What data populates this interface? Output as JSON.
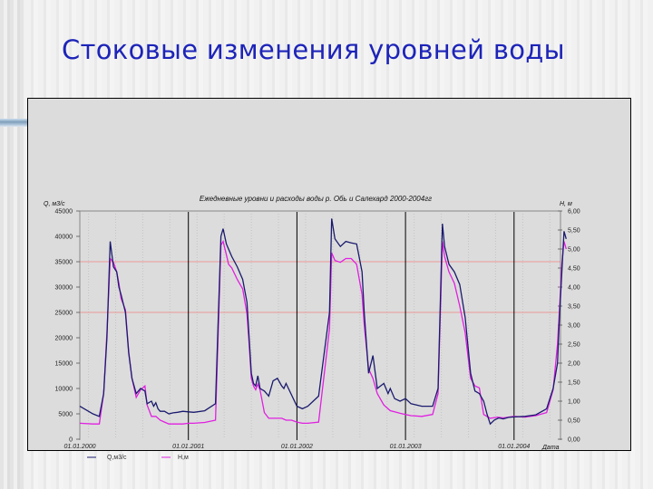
{
  "slide": {
    "title": "Стоковые изменения уровней воды"
  },
  "colors": {
    "title": "#1d24b8",
    "q_series": "#1a1a6e",
    "h_series": "#e020e0",
    "ref_lines": "#f08080",
    "year_lines": "#000000",
    "plot_bg": "#dcdcdc"
  },
  "chart_data": {
    "type": "line",
    "title": "Ежедневные уровни и расходы воды р. Обь и Салехард 2000-2004гг",
    "xlabel": "Дата",
    "ylabel_left": "Q, м3/с",
    "ylabel_right": "H, м",
    "ylim_left": [
      0,
      45000
    ],
    "ylim_right": [
      0.0,
      6.0
    ],
    "x_tick_labels": [
      "01.01.2000",
      "01.01.2001",
      "01.01.2002",
      "01.01.2003",
      "01.01.2004"
    ],
    "y_left_ticks": [
      "0",
      "5000",
      "10000",
      "15000",
      "20000",
      "25000",
      "30000",
      "35000",
      "40000",
      "45000"
    ],
    "y_right_ticks": [
      "0,00",
      "0,50",
      "1,00",
      "1,50",
      "2,00",
      "2,50",
      "3,00",
      "3,50",
      "4,00",
      "4,50",
      "5,00",
      "5,50",
      "6,00"
    ],
    "reference_lines_left": [
      25000,
      35000
    ],
    "legend": [
      "Q,м3/с",
      "H,м"
    ],
    "x_unit": "years since 01.01.2000",
    "series": [
      {
        "name": "Q,м3/с",
        "axis": "left",
        "x": [
          0.0,
          0.12,
          0.18,
          0.22,
          0.25,
          0.28,
          0.31,
          0.34,
          0.36,
          0.38,
          0.42,
          0.45,
          0.48,
          0.52,
          0.56,
          0.6,
          0.62,
          0.66,
          0.68,
          0.7,
          0.72,
          0.74,
          0.78,
          0.82,
          0.86,
          0.9,
          0.95,
          1.0,
          1.05,
          1.15,
          1.25,
          1.3,
          1.32,
          1.35,
          1.37,
          1.4,
          1.45,
          1.5,
          1.54,
          1.56,
          1.58,
          1.6,
          1.62,
          1.64,
          1.66,
          1.7,
          1.74,
          1.78,
          1.82,
          1.86,
          1.88,
          1.9,
          2.0,
          2.05,
          2.1,
          2.2,
          2.3,
          2.32,
          2.35,
          2.4,
          2.45,
          2.5,
          2.55,
          2.6,
          2.62,
          2.66,
          2.7,
          2.74,
          2.8,
          2.84,
          2.86,
          2.9,
          2.95,
          3.0,
          3.05,
          3.15,
          3.25,
          3.3,
          3.34,
          3.36,
          3.4,
          3.45,
          3.5,
          3.55,
          3.6,
          3.64,
          3.68,
          3.72,
          3.75,
          3.78,
          3.82,
          3.86,
          3.9,
          3.95,
          4.0,
          4.1,
          4.2,
          4.3,
          4.36,
          4.4,
          4.42,
          4.44,
          4.46,
          4.48
        ],
        "y": [
          6500,
          5000,
          4500,
          9000,
          20000,
          39000,
          34000,
          33000,
          30000,
          28500,
          25000,
          17000,
          12000,
          9000,
          10000,
          9500,
          7000,
          7500,
          6500,
          7200,
          6000,
          5500,
          5500,
          5000,
          5200,
          5300,
          5500,
          5400,
          5300,
          5600,
          7000,
          40000,
          41500,
          38500,
          37500,
          36000,
          34000,
          31500,
          27000,
          20000,
          13000,
          11000,
          10500,
          12500,
          10000,
          9500,
          8500,
          11500,
          12000,
          10500,
          10000,
          11000,
          6500,
          6000,
          6500,
          8500,
          25000,
          43500,
          39500,
          38000,
          39000,
          38700,
          38500,
          33000,
          25000,
          13000,
          16500,
          10000,
          11000,
          9000,
          10000,
          8000,
          7500,
          8000,
          7000,
          6500,
          6500,
          10000,
          42500,
          38000,
          34500,
          33000,
          30500,
          24000,
          13000,
          9500,
          9000,
          7500,
          5000,
          3000,
          3800,
          4200,
          4000,
          4300,
          4400,
          4500,
          4800,
          6000,
          10000,
          15000,
          25000,
          33000,
          41000,
          39500
        ]
      },
      {
        "name": "H,м",
        "axis": "right",
        "x": [
          0.0,
          0.12,
          0.18,
          0.22,
          0.25,
          0.28,
          0.31,
          0.34,
          0.36,
          0.38,
          0.42,
          0.45,
          0.48,
          0.52,
          0.56,
          0.6,
          0.62,
          0.66,
          0.7,
          0.74,
          0.78,
          0.82,
          0.86,
          0.9,
          0.95,
          1.0,
          1.05,
          1.15,
          1.25,
          1.3,
          1.32,
          1.35,
          1.37,
          1.4,
          1.45,
          1.5,
          1.54,
          1.56,
          1.58,
          1.6,
          1.62,
          1.64,
          1.66,
          1.7,
          1.74,
          1.8,
          1.86,
          1.9,
          1.95,
          2.0,
          2.05,
          2.1,
          2.2,
          2.3,
          2.32,
          2.35,
          2.4,
          2.45,
          2.5,
          2.55,
          2.6,
          2.62,
          2.66,
          2.7,
          2.74,
          2.8,
          2.86,
          2.9,
          2.95,
          3.0,
          3.05,
          3.15,
          3.25,
          3.3,
          3.34,
          3.36,
          3.4,
          3.45,
          3.5,
          3.55,
          3.6,
          3.64,
          3.68,
          3.72,
          3.78,
          3.85,
          3.9,
          3.95,
          4.0,
          4.1,
          4.2,
          4.3,
          4.36,
          4.4,
          4.42,
          4.44,
          4.46,
          4.48
        ],
        "y": [
          0.42,
          0.4,
          0.4,
          1.2,
          2.8,
          4.75,
          4.65,
          4.4,
          4.1,
          3.7,
          3.4,
          2.3,
          1.6,
          1.1,
          1.3,
          1.4,
          0.9,
          0.6,
          0.6,
          0.5,
          0.45,
          0.4,
          0.4,
          0.4,
          0.4,
          0.42,
          0.42,
          0.44,
          0.5,
          5.1,
          5.2,
          4.85,
          4.6,
          4.5,
          4.2,
          3.95,
          3.3,
          2.5,
          1.6,
          1.4,
          1.3,
          1.45,
          1.3,
          0.7,
          0.55,
          0.55,
          0.55,
          0.5,
          0.5,
          0.45,
          0.42,
          0.42,
          0.45,
          2.9,
          4.9,
          4.7,
          4.65,
          4.75,
          4.75,
          4.6,
          3.8,
          3.0,
          1.85,
          1.6,
          1.2,
          0.9,
          0.75,
          0.72,
          0.68,
          0.65,
          0.62,
          0.6,
          0.65,
          1.2,
          5.2,
          4.8,
          4.4,
          4.1,
          3.5,
          2.8,
          1.6,
          1.4,
          1.35,
          0.65,
          0.55,
          0.58,
          0.56,
          0.58,
          0.6,
          0.58,
          0.62,
          0.7,
          1.3,
          2.5,
          3.5,
          4.6,
          5.2,
          5.0
        ]
      }
    ]
  }
}
